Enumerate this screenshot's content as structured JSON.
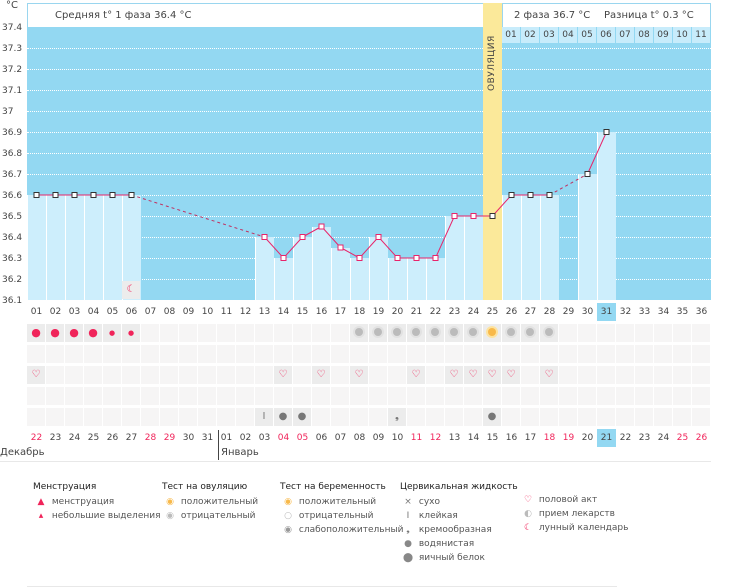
{
  "header": {
    "phase1": "Средняя t° 1 фаза 36.4 °C",
    "phase2": "2 фаза 36.7 °C",
    "diff": "Разница t° 0.3 °C",
    "ovulation": "ОВУЛЯЦИЯ"
  },
  "post_ovulation_days": [
    "01",
    "02",
    "03",
    "04",
    "05",
    "06",
    "07",
    "08",
    "09",
    "10",
    "11"
  ],
  "months": {
    "dec": "Декабрь",
    "jan": "Январь"
  },
  "colors": {
    "plot": "#93d8f2",
    "bar": "#cdeefc",
    "line": "#e8246a",
    "ovulation": "#fbe99a",
    "weekend": "#f0245a"
  },
  "chart_data": {
    "type": "line",
    "ylabel": "°C",
    "ylim": [
      36.1,
      37.4
    ],
    "yticks": [
      "37.4",
      "37.3",
      "37.2",
      "37.1",
      "37",
      "36.9",
      "36.8",
      "36.7",
      "36.6",
      "36.5",
      "36.4",
      "36.3",
      "36.2",
      "36.1"
    ],
    "cycle_days": [
      "01",
      "02",
      "03",
      "04",
      "05",
      "06",
      "07",
      "08",
      "09",
      "10",
      "11",
      "12",
      "13",
      "14",
      "15",
      "16",
      "17",
      "18",
      "19",
      "20",
      "21",
      "22",
      "23",
      "24",
      "25",
      "26",
      "27",
      "28",
      "29",
      "30",
      "31",
      "32",
      "33",
      "34",
      "35",
      "36"
    ],
    "dates": [
      "22",
      "23",
      "24",
      "25",
      "26",
      "27",
      "28",
      "29",
      "30",
      "31",
      "01",
      "02",
      "03",
      "04",
      "05",
      "06",
      "07",
      "08",
      "09",
      "10",
      "11",
      "12",
      "13",
      "14",
      "15",
      "16",
      "17",
      "18",
      "19",
      "20",
      "21",
      "22",
      "23",
      "24",
      "25",
      "26"
    ],
    "weekend": [
      0,
      6,
      7,
      13,
      14,
      20,
      21,
      27,
      28,
      34,
      35
    ],
    "temps": [
      36.6,
      36.6,
      36.6,
      36.6,
      36.6,
      36.6,
      null,
      null,
      null,
      null,
      null,
      null,
      36.4,
      36.3,
      36.4,
      36.45,
      36.35,
      36.3,
      36.4,
      36.3,
      36.3,
      36.3,
      36.5,
      36.5,
      36.5,
      36.6,
      36.6,
      36.6,
      null,
      36.7,
      36.9,
      null,
      null,
      null,
      null,
      null
    ],
    "ovulation_day": 25,
    "today_day": 31
  },
  "rows": {
    "menstruation": {
      "1": "heavy",
      "2": "heavy",
      "3": "heavy",
      "4": "heavy",
      "5": "light",
      "6": "light"
    },
    "ovulation_test": {
      "18": "neg",
      "19": "neg",
      "20": "neg",
      "21": "neg",
      "22": "neg",
      "23": "neg",
      "24": "neg",
      "25": "pos",
      "26": "neg",
      "27": "neg",
      "28": "neg"
    },
    "sex": [
      1,
      14,
      16,
      18,
      21,
      23,
      24,
      25,
      26,
      28
    ],
    "fluid": {
      "13": "sticky",
      "14": "watery",
      "15": "watery",
      "20": "creamy",
      "25": "watery"
    },
    "moon": [
      6
    ]
  },
  "legend": [
    {
      "title": "Менструация",
      "items": [
        {
          "icon": "heavy-drop",
          "label": "менструация"
        },
        {
          "icon": "light-drop",
          "label": "небольшие выделения"
        }
      ]
    },
    {
      "title": "Тест на овуляцию",
      "items": [
        {
          "icon": "sun-positive",
          "label": "положительный"
        },
        {
          "icon": "grey-negative",
          "label": "отрицательный"
        }
      ]
    },
    {
      "title": "Тест на беременность",
      "items": [
        {
          "icon": "preg-positive",
          "label": "положительный"
        },
        {
          "icon": "preg-negative",
          "label": "отрицательный"
        },
        {
          "icon": "preg-weak",
          "label": "слабоположительный"
        }
      ]
    },
    {
      "title": "Цервикальная жидкость",
      "items": [
        {
          "icon": "dry",
          "label": "сухо"
        },
        {
          "icon": "sticky",
          "label": "клейкая"
        },
        {
          "icon": "creamy",
          "label": "кремообразная"
        },
        {
          "icon": "watery",
          "label": "водянистая"
        },
        {
          "icon": "eggwhite",
          "label": "яичный белок"
        }
      ]
    },
    {
      "title": "",
      "items": [
        {
          "icon": "heart",
          "label": "половой акт"
        },
        {
          "icon": "pill",
          "label": "прием лекарств"
        },
        {
          "icon": "moon",
          "label": "лунный календарь"
        }
      ]
    }
  ]
}
